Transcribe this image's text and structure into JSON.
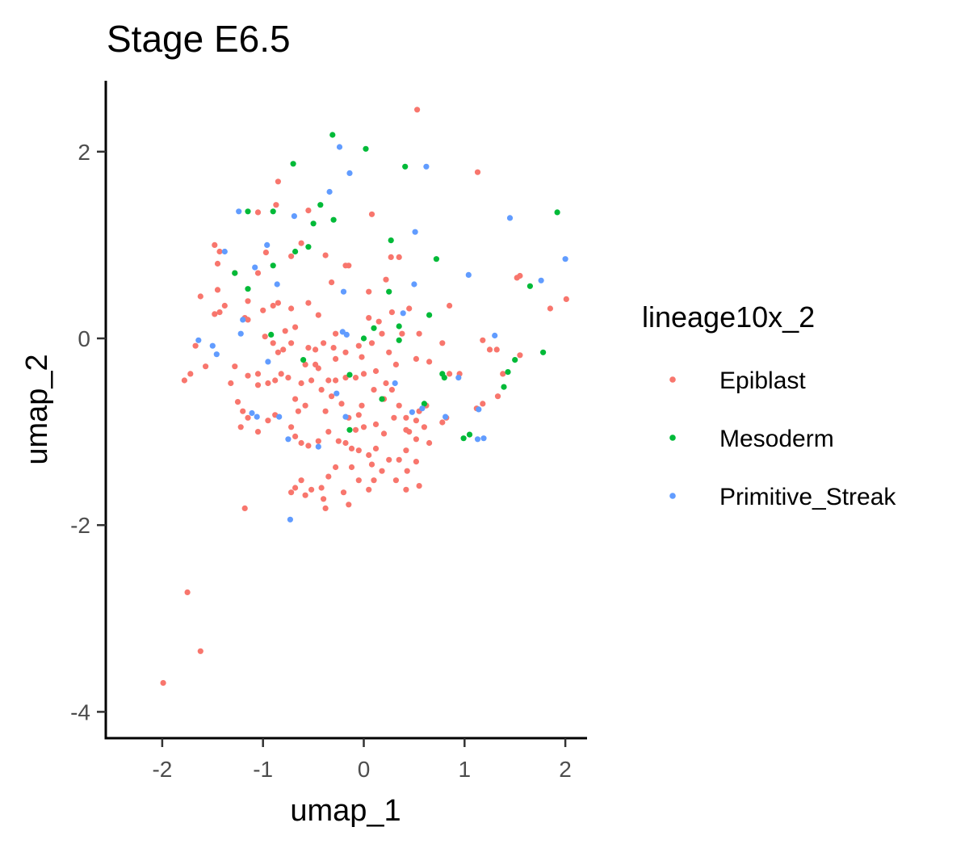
{
  "chart_data": {
    "type": "scatter",
    "title": "Stage E6.5",
    "xlabel": "umap_1",
    "ylabel": "umap_2",
    "xlim": [
      -2.55,
      2.2
    ],
    "ylim": [
      -4.3,
      2.75
    ],
    "xticks": [
      -2,
      -1,
      0,
      1,
      2
    ],
    "yticks": [
      -4,
      -2,
      0,
      2
    ],
    "grid": false,
    "legend": {
      "title": "lineage10x_2",
      "position": "right"
    },
    "series": [
      {
        "name": "Epiblast",
        "color": "#F8766D",
        "points": [
          [
            0.53,
            2.45
          ],
          [
            1.13,
            1.78
          ],
          [
            -0.85,
            1.68
          ],
          [
            -0.87,
            1.43
          ],
          [
            -1.05,
            1.35
          ],
          [
            -0.55,
            1.37
          ],
          [
            0.08,
            1.33
          ],
          [
            -1.48,
            1.0
          ],
          [
            -0.62,
            1.02
          ],
          [
            -1.43,
            0.93
          ],
          [
            -0.97,
            0.92
          ],
          [
            -0.38,
            0.89
          ],
          [
            -0.72,
            0.88
          ],
          [
            -0.15,
            0.78
          ],
          [
            0.27,
            0.87
          ],
          [
            0.35,
            0.87
          ],
          [
            -1.45,
            0.8
          ],
          [
            -1.28,
            0.7
          ],
          [
            -1.05,
            0.7
          ],
          [
            -0.18,
            0.78
          ],
          [
            -1.45,
            0.52
          ],
          [
            -1.62,
            0.45
          ],
          [
            -1.38,
            0.35
          ],
          [
            -1.43,
            0.28
          ],
          [
            -1.48,
            0.26
          ],
          [
            -1.15,
            0.4
          ],
          [
            -0.85,
            0.38
          ],
          [
            -0.72,
            0.32
          ],
          [
            -0.55,
            0.38
          ],
          [
            -0.45,
            0.25
          ],
          [
            -0.32,
            0.6
          ],
          [
            0.05,
            0.5
          ],
          [
            0.22,
            0.63
          ],
          [
            0.28,
            0.28
          ],
          [
            0.45,
            0.32
          ],
          [
            0.85,
            0.35
          ],
          [
            1.55,
            0.67
          ],
          [
            1.52,
            0.65
          ],
          [
            1.85,
            0.32
          ],
          [
            2.01,
            0.42
          ],
          [
            -1.18,
            0.22
          ],
          [
            -1.15,
            0.2
          ],
          [
            -1.0,
            0.3
          ],
          [
            -0.9,
            0.35
          ],
          [
            -0.98,
            0.02
          ],
          [
            -0.9,
            -0.05
          ],
          [
            -0.8,
            -0.12
          ],
          [
            -0.72,
            -0.05
          ],
          [
            -0.85,
            -0.15
          ],
          [
            -0.55,
            -0.1
          ],
          [
            -0.48,
            -0.12
          ],
          [
            -0.4,
            -0.05
          ],
          [
            -0.3,
            -0.1
          ],
          [
            -0.28,
            -0.22
          ],
          [
            -0.18,
            -0.15
          ],
          [
            -0.05,
            -0.08
          ],
          [
            -0.02,
            -0.2
          ],
          [
            0.08,
            -0.05
          ],
          [
            0.18,
            0.05
          ],
          [
            0.25,
            -0.15
          ],
          [
            0.32,
            -0.28
          ],
          [
            0.52,
            -0.22
          ],
          [
            0.38,
            0.05
          ],
          [
            0.55,
            0.05
          ],
          [
            0.78,
            -0.05
          ],
          [
            0.65,
            -0.25
          ],
          [
            0.85,
            -0.38
          ],
          [
            0.95,
            -0.38
          ],
          [
            1.18,
            -0.02
          ],
          [
            1.25,
            -0.12
          ],
          [
            1.32,
            -0.12
          ],
          [
            1.55,
            -0.18
          ],
          [
            1.38,
            -0.38
          ],
          [
            1.33,
            -0.62
          ],
          [
            1.18,
            -0.7
          ],
          [
            1.12,
            -0.75
          ],
          [
            0.82,
            -0.85
          ],
          [
            0.78,
            -0.9
          ],
          [
            0.62,
            -0.72
          ],
          [
            0.55,
            -0.78
          ],
          [
            0.45,
            -1.0
          ],
          [
            0.42,
            -1.2
          ],
          [
            0.35,
            -1.3
          ],
          [
            0.25,
            -1.3
          ],
          [
            0.18,
            -1.42
          ],
          [
            0.12,
            -1.18
          ],
          [
            0.05,
            -1.25
          ],
          [
            -0.05,
            -1.2
          ],
          [
            -0.12,
            -1.18
          ],
          [
            -0.18,
            -1.12
          ],
          [
            -0.25,
            -1.1
          ],
          [
            -0.35,
            -1.0
          ],
          [
            -0.45,
            -1.1
          ],
          [
            -0.55,
            -1.15
          ],
          [
            -0.62,
            -1.12
          ],
          [
            -0.68,
            -1.05
          ],
          [
            -0.72,
            -0.95
          ],
          [
            -0.65,
            -0.78
          ],
          [
            -0.58,
            -0.72
          ],
          [
            -0.68,
            -0.65
          ],
          [
            -0.62,
            -0.48
          ],
          [
            -0.75,
            -0.42
          ],
          [
            -0.82,
            -0.38
          ],
          [
            -0.88,
            -0.45
          ],
          [
            -0.95,
            -0.48
          ],
          [
            -1.05,
            -0.38
          ],
          [
            -1.15,
            -0.4
          ],
          [
            -1.28,
            -0.3
          ],
          [
            -1.32,
            -0.48
          ],
          [
            -1.25,
            -0.68
          ],
          [
            -1.2,
            -0.78
          ],
          [
            -1.22,
            -0.95
          ],
          [
            -1.15,
            -0.85
          ],
          [
            -1.05,
            -1.0
          ],
          [
            -0.95,
            -0.88
          ],
          [
            -0.88,
            -0.82
          ],
          [
            -1.05,
            -0.5
          ],
          [
            -1.72,
            -0.38
          ],
          [
            -1.78,
            -0.45
          ],
          [
            -1.57,
            -0.3
          ],
          [
            -1.67,
            -0.08
          ],
          [
            -0.35,
            -0.45
          ],
          [
            -0.32,
            -0.62
          ],
          [
            -0.22,
            -0.7
          ],
          [
            -0.38,
            -0.78
          ],
          [
            -0.15,
            -0.85
          ],
          [
            -0.05,
            -0.82
          ],
          [
            -0.02,
            -0.72
          ],
          [
            0.1,
            -0.55
          ],
          [
            0.2,
            -0.65
          ],
          [
            0.28,
            -0.55
          ],
          [
            0.35,
            -0.72
          ],
          [
            0.42,
            -0.85
          ],
          [
            0.52,
            -0.88
          ],
          [
            0.6,
            -0.95
          ],
          [
            0.65,
            -1.12
          ],
          [
            0.52,
            -1.32
          ],
          [
            0.43,
            -1.42
          ],
          [
            0.32,
            -1.52
          ],
          [
            0.55,
            -1.58
          ],
          [
            0.42,
            -1.62
          ],
          [
            0.1,
            -1.52
          ],
          [
            0.08,
            -1.35
          ],
          [
            -0.05,
            -1.52
          ],
          [
            -0.12,
            -1.38
          ],
          [
            -0.28,
            -1.38
          ],
          [
            -0.35,
            -1.48
          ],
          [
            -0.42,
            -1.6
          ],
          [
            -0.52,
            -1.62
          ],
          [
            -0.58,
            -1.68
          ],
          [
            -0.68,
            -1.6
          ],
          [
            -0.72,
            -1.65
          ],
          [
            -0.62,
            -1.52
          ],
          [
            -0.4,
            -1.72
          ],
          [
            -0.2,
            -1.65
          ],
          [
            -0.15,
            -1.78
          ],
          [
            -0.38,
            -1.82
          ],
          [
            0.05,
            -1.62
          ],
          [
            -1.18,
            -1.82
          ],
          [
            -1.75,
            -2.72
          ],
          [
            -1.62,
            -3.35
          ],
          [
            -1.99,
            -3.69
          ],
          [
            -0.45,
            -0.32
          ],
          [
            -0.52,
            -0.45
          ],
          [
            -0.42,
            -0.55
          ],
          [
            -0.28,
            -0.45
          ],
          [
            -0.18,
            -0.42
          ],
          [
            -0.08,
            -0.42
          ],
          [
            0.0,
            -0.38
          ],
          [
            0.12,
            -0.35
          ],
          [
            0.22,
            -0.48
          ],
          [
            0.05,
            0.22
          ],
          [
            0.15,
            0.18
          ],
          [
            -0.68,
            0.12
          ],
          [
            -0.78,
            0.08
          ],
          [
            -0.58,
            -0.28
          ],
          [
            -0.28,
            0.05
          ],
          [
            -0.48,
            -0.28
          ],
          [
            0.3,
            -0.85
          ],
          [
            0.42,
            -0.98
          ],
          [
            0.52,
            -1.08
          ],
          [
            0.2,
            -1.02
          ],
          [
            0.12,
            -0.92
          ],
          [
            0.0,
            -0.95
          ],
          [
            -0.08,
            -0.98
          ]
        ]
      },
      {
        "name": "Mesoderm",
        "color": "#00BA38",
        "points": [
          [
            -0.31,
            2.18
          ],
          [
            0.02,
            2.03
          ],
          [
            -0.7,
            1.87
          ],
          [
            0.41,
            1.84
          ],
          [
            -0.43,
            1.43
          ],
          [
            -0.5,
            1.23
          ],
          [
            -0.3,
            1.27
          ],
          [
            -0.9,
            1.36
          ],
          [
            -1.15,
            1.36
          ],
          [
            0.27,
            1.05
          ],
          [
            -0.55,
            0.98
          ],
          [
            -0.68,
            0.93
          ],
          [
            0.72,
            0.85
          ],
          [
            -0.9,
            0.78
          ],
          [
            1.92,
            1.35
          ],
          [
            1.65,
            0.56
          ],
          [
            -1.28,
            0.7
          ],
          [
            -1.15,
            0.53
          ],
          [
            0.25,
            0.5
          ],
          [
            0.65,
            0.25
          ],
          [
            0.35,
            0.13
          ],
          [
            0.1,
            0.11
          ],
          [
            0.35,
            -0.02
          ],
          [
            -0.92,
            0.04
          ],
          [
            -0.0,
            0.0
          ],
          [
            -0.6,
            -0.23
          ],
          [
            1.5,
            -0.23
          ],
          [
            1.78,
            -0.15
          ],
          [
            0.8,
            -0.42
          ],
          [
            -0.14,
            -0.39
          ],
          [
            1.43,
            -0.36
          ],
          [
            1.39,
            -0.52
          ],
          [
            0.6,
            -0.7
          ],
          [
            0.18,
            -0.65
          ],
          [
            0.99,
            -1.07
          ],
          [
            1.05,
            -1.03
          ],
          [
            0.78,
            -0.38
          ],
          [
            -0.14,
            -0.98
          ]
        ]
      },
      {
        "name": "Primitive_Streak",
        "color": "#619CFF",
        "points": [
          [
            -0.24,
            2.05
          ],
          [
            0.62,
            1.84
          ],
          [
            -0.14,
            1.77
          ],
          [
            -0.34,
            1.57
          ],
          [
            -1.24,
            1.36
          ],
          [
            -0.69,
            1.31
          ],
          [
            0.51,
            1.14
          ],
          [
            1.45,
            1.29
          ],
          [
            -0.96,
            1.0
          ],
          [
            2.0,
            0.85
          ],
          [
            -1.38,
            0.93
          ],
          [
            -1.08,
            0.76
          ],
          [
            1.04,
            0.68
          ],
          [
            1.76,
            0.62
          ],
          [
            -0.86,
            0.58
          ],
          [
            0.5,
            0.58
          ],
          [
            -0.2,
            0.5
          ],
          [
            -1.2,
            0.2
          ],
          [
            0.39,
            0.27
          ],
          [
            -1.22,
            0.05
          ],
          [
            -0.21,
            0.07
          ],
          [
            -0.17,
            0.04
          ],
          [
            1.3,
            0.03
          ],
          [
            -1.64,
            -0.02
          ],
          [
            -1.5,
            -0.08
          ],
          [
            -1.46,
            -0.17
          ],
          [
            -0.95,
            -0.25
          ],
          [
            0.94,
            -0.42
          ],
          [
            0.31,
            -0.48
          ],
          [
            -0.27,
            -0.59
          ],
          [
            -0.84,
            -0.84
          ],
          [
            -1.11,
            -0.8
          ],
          [
            0.58,
            -0.75
          ],
          [
            0.48,
            -0.79
          ],
          [
            -1.06,
            -0.84
          ],
          [
            -0.18,
            -0.84
          ],
          [
            -0.75,
            -1.08
          ],
          [
            -0.45,
            -1.16
          ],
          [
            1.14,
            -0.76
          ],
          [
            0.81,
            -0.84
          ],
          [
            -0.73,
            -1.94
          ],
          [
            1.19,
            -1.07
          ],
          [
            1.13,
            -1.08
          ]
        ]
      }
    ]
  }
}
